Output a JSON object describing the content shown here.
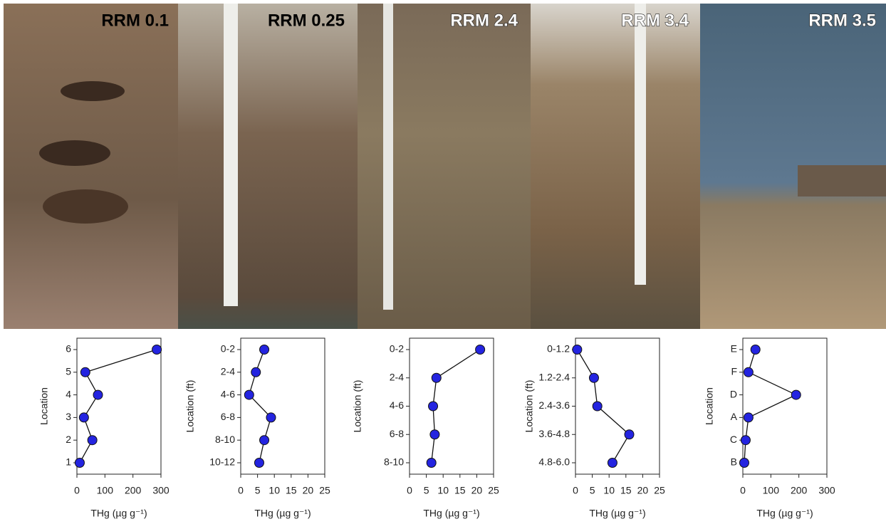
{
  "chart_data": [
    {
      "type": "line",
      "title": "RRM 0.1",
      "categories": [
        "6",
        "5",
        "4",
        "3",
        "2",
        "1"
      ],
      "values": [
        285,
        30,
        75,
        25,
        55,
        10
      ],
      "color": "#2424e0",
      "xlim": [
        0,
        300
      ],
      "xticks": [
        0,
        100,
        200,
        300
      ],
      "x_label": "THg (µg g⁻¹)",
      "y_label": "Location"
    },
    {
      "type": "line",
      "title": "RRM 0.25",
      "categories": [
        "0-2",
        "2-4",
        "4-6",
        "6-8",
        "8-10",
        "10-12"
      ],
      "values": [
        7,
        4.5,
        2.5,
        9,
        7,
        5.5
      ],
      "color": "#2424e0",
      "xlim": [
        0,
        25
      ],
      "xticks": [
        0,
        5,
        10,
        15,
        20,
        25
      ],
      "x_label": "THg (µg g⁻¹)",
      "y_label": "Location (ft)"
    },
    {
      "type": "line",
      "title": "RRM 2.4",
      "categories": [
        "0-2",
        "2-4",
        "4-6",
        "6-8",
        "8-10"
      ],
      "values": [
        21,
        8,
        7,
        7.5,
        6.5
      ],
      "color": "#2424e0",
      "xlim": [
        0,
        25
      ],
      "xticks": [
        0,
        5,
        10,
        15,
        20,
        25
      ],
      "x_label": "THg (µg g⁻¹)",
      "y_label": "Location (ft)"
    },
    {
      "type": "line",
      "title": "RRM 3.4",
      "categories": [
        "0-1.2",
        "1.2-2.4",
        "2.4-3.6",
        "3.6-4.8",
        "4.8-6.0"
      ],
      "values": [
        0.5,
        5.5,
        6.5,
        16,
        11
      ],
      "color": "#2424e0",
      "xlim": [
        0,
        25
      ],
      "xticks": [
        0,
        5,
        10,
        15,
        20,
        25
      ],
      "x_label": "THg (µg g⁻¹)",
      "y_label": "Location (ft)"
    },
    {
      "type": "line",
      "title": "RRM 3.5",
      "categories": [
        "E",
        "F",
        "D",
        "A",
        "C",
        "B"
      ],
      "values": [
        45,
        20,
        190,
        20,
        10,
        5
      ],
      "color": "#2424e0",
      "xlim": [
        0,
        300
      ],
      "xticks": [
        0,
        100,
        200,
        300
      ],
      "x_label": "THg (µg g⁻¹)",
      "y_label": "Location"
    }
  ]
}
